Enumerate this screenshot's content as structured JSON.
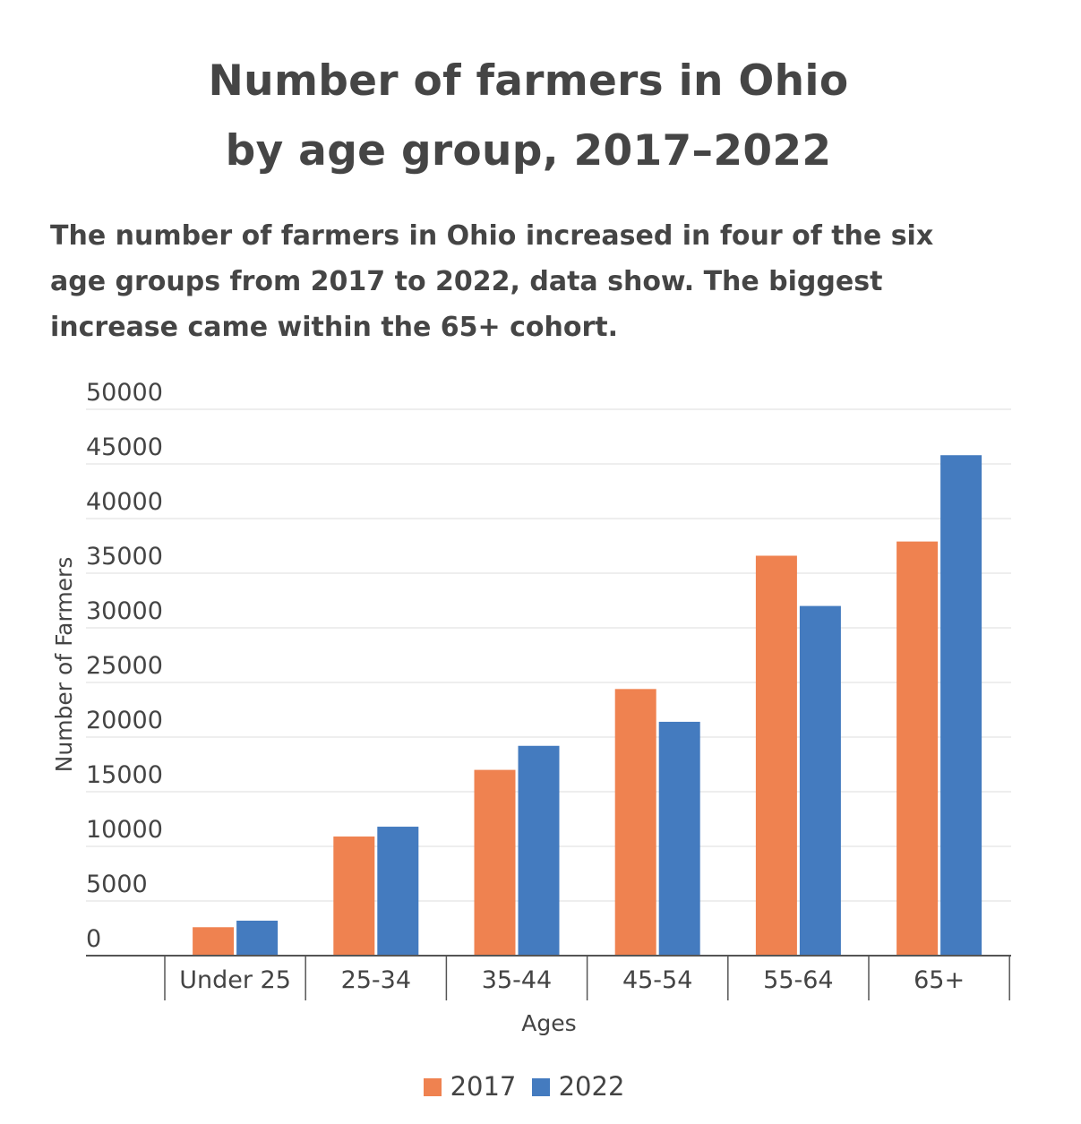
{
  "chart_data": {
    "type": "bar",
    "title_lines": [
      "Number of farmers in Ohio",
      "by age group, 2017–2022"
    ],
    "subtitle_lines": [
      "The number of farmers in Ohio increased in four of the six",
      "age groups from 2017 to 2022, data show. The biggest",
      "increase came within the 65+ cohort."
    ],
    "xlabel": "Ages",
    "ylabel": "Number of Farmers",
    "categories": [
      "Under 25",
      "25-34",
      "35-44",
      "45-54",
      "55-64",
      "65+"
    ],
    "series": [
      {
        "name": "2017",
        "color": "#ef8250",
        "values": [
          2600,
          10900,
          17000,
          24400,
          36600,
          37900
        ]
      },
      {
        "name": "2022",
        "color": "#447bbf",
        "values": [
          3200,
          11800,
          19200,
          21400,
          32000,
          45800
        ]
      }
    ],
    "ylim": [
      0,
      50000
    ],
    "yticks": [
      0,
      5000,
      10000,
      15000,
      20000,
      25000,
      30000,
      35000,
      40000,
      45000,
      50000
    ],
    "grid": true,
    "legend_position": "bottom-center"
  }
}
